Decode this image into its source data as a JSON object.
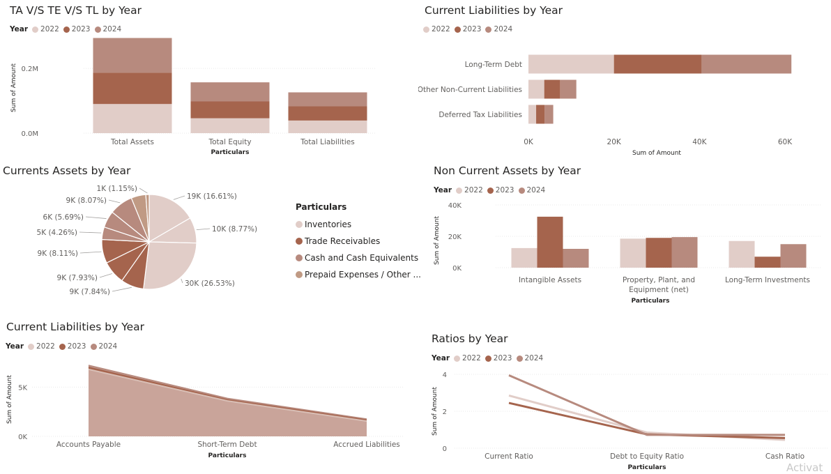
{
  "colors": {
    "c2022": "#e1cdc8",
    "c2023": "#a5644d",
    "c2024": "#b78a7e",
    "grid": "#e9e9e9",
    "axis_text": "#605e5c"
  },
  "legend_years": [
    "2022",
    "2023",
    "2024"
  ],
  "chart_data": [
    {
      "id": "ta_te_tl",
      "type": "bar",
      "stacked": true,
      "title": "TA V/S TE V/S TL by Year",
      "legend_title": "Year",
      "categories": [
        "Total Assets",
        "Total Equity",
        "Total Liabilities"
      ],
      "series": [
        {
          "name": "2022",
          "values": [
            90000,
            46000,
            39000
          ]
        },
        {
          "name": "2023",
          "values": [
            97000,
            52000,
            44000
          ]
        },
        {
          "name": "2024",
          "values": [
            107000,
            59000,
            43000
          ]
        }
      ],
      "xlabel": "Particulars",
      "ylabel": "Sum of Amount",
      "yticks": [
        {
          "v": 0,
          "label": "0.0M"
        },
        {
          "v": 200000,
          "label": "0.2M"
        }
      ],
      "ylim": [
        0,
        280000
      ]
    },
    {
      "id": "current_liab_bar",
      "type": "bar",
      "orientation": "horizontal",
      "stacked": true,
      "title": "Current Liabilities by Year",
      "categories": [
        "Long-Term Debt",
        "Other Non-Current Liabilities",
        "Deferred Tax Liabilities"
      ],
      "series": [
        {
          "name": "2022",
          "values": [
            20000,
            3700,
            1800
          ]
        },
        {
          "name": "2023",
          "values": [
            20500,
            3700,
            2000
          ]
        },
        {
          "name": "2024",
          "values": [
            21000,
            3800,
            2000
          ]
        }
      ],
      "xlabel": "Sum of Amount",
      "xticks": [
        {
          "v": 0,
          "label": "0K"
        },
        {
          "v": 20000,
          "label": "20K"
        },
        {
          "v": 40000,
          "label": "40K"
        },
        {
          "v": 60000,
          "label": "60K"
        }
      ],
      "xlim": [
        0,
        60000
      ]
    },
    {
      "id": "current_assets_pie",
      "type": "pie",
      "title": "Currents Assets by Year",
      "legend_title": "Particulars",
      "legend": [
        "Inventories",
        "Trade Receivables",
        "Cash and Cash Equivalents",
        "Prepaid Expenses / Other ..."
      ],
      "slices": [
        {
          "value": 16.61,
          "label": "19K (16.61%)",
          "color": "#e1cdc8"
        },
        {
          "value": 8.77,
          "label": "10K (8.77%)",
          "color": "#e1cdc8"
        },
        {
          "value": 26.53,
          "label": "30K (26.53%)",
          "color": "#e1cdc8"
        },
        {
          "value": 7.84,
          "label": "9K (7.84%)",
          "color": "#a5644d"
        },
        {
          "value": 7.93,
          "label": "9K (7.93%)",
          "color": "#a5644d"
        },
        {
          "value": 8.11,
          "label": "9K (8.11%)",
          "color": "#a5644d"
        },
        {
          "value": 4.26,
          "label": "5K (4.26%)",
          "color": "#b78a7e"
        },
        {
          "value": 5.69,
          "label": "6K (5.69%)",
          "color": "#b78a7e"
        },
        {
          "value": 8.07,
          "label": "9K (8.07%)",
          "color": "#b78a7e"
        },
        {
          "value": 5.0,
          "label": "",
          "color": "#c09a84"
        },
        {
          "value": 1.15,
          "label": "1K (1.15%)",
          "color": "#c09a84"
        }
      ]
    },
    {
      "id": "non_current_assets",
      "type": "bar",
      "title": "Non Current Assets by Year",
      "legend_title": "Year",
      "categories": [
        "Intangible Assets",
        "Property, Plant, and Equipment (net)",
        "Long-Term Investments"
      ],
      "category_lines": [
        [
          "Intangible Assets"
        ],
        [
          "Property, Plant, and",
          "Equipment (net)"
        ],
        [
          "Long-Term Investments"
        ]
      ],
      "series": [
        {
          "name": "2022",
          "values": [
            12500,
            18500,
            17000
          ]
        },
        {
          "name": "2023",
          "values": [
            32500,
            19000,
            7000
          ]
        },
        {
          "name": "2024",
          "values": [
            12000,
            19500,
            15000
          ]
        }
      ],
      "xlabel": "Particulars",
      "ylabel": "Sum of Amount",
      "yticks": [
        {
          "v": 0,
          "label": "0K"
        },
        {
          "v": 20000,
          "label": "20K"
        },
        {
          "v": 40000,
          "label": "40K"
        }
      ],
      "ylim": [
        0,
        40000
      ]
    },
    {
      "id": "current_liab_area",
      "type": "area",
      "title": "Current Liabilities by Year",
      "legend_title": "Year",
      "categories": [
        "Accounts Payable",
        "Short-Term Debt",
        "Accrued Liabilities"
      ],
      "series": [
        {
          "name": "2022",
          "values": [
            6800,
            3600,
            1550
          ]
        },
        {
          "name": "2023",
          "values": [
            7000,
            3700,
            1650
          ]
        },
        {
          "name": "2024",
          "values": [
            7200,
            3850,
            1750
          ]
        }
      ],
      "xlabel": "Particulars",
      "ylabel": "Sum of Amount",
      "yticks": [
        {
          "v": 0,
          "label": "0K"
        },
        {
          "v": 5000,
          "label": "5K"
        }
      ],
      "ylim": [
        0,
        7500
      ]
    },
    {
      "id": "ratios",
      "type": "line",
      "title": "Ratios by Year",
      "legend_title": "Year",
      "categories": [
        "Current Ratio",
        "Debt to Equity Ratio",
        "Cash Ratio"
      ],
      "series": [
        {
          "name": "2022",
          "values": [
            2.85,
            0.85,
            0.45
          ]
        },
        {
          "name": "2023",
          "values": [
            2.45,
            0.75,
            0.55
          ]
        },
        {
          "name": "2024",
          "values": [
            3.95,
            0.72,
            0.72
          ]
        }
      ],
      "xlabel": "Particulars",
      "ylabel": "Sum of Amount",
      "yticks": [
        {
          "v": 0,
          "label": "0"
        },
        {
          "v": 2,
          "label": "2"
        },
        {
          "v": 4,
          "label": "4"
        }
      ],
      "ylim": [
        0,
        4
      ]
    }
  ],
  "watermark": "Activat"
}
